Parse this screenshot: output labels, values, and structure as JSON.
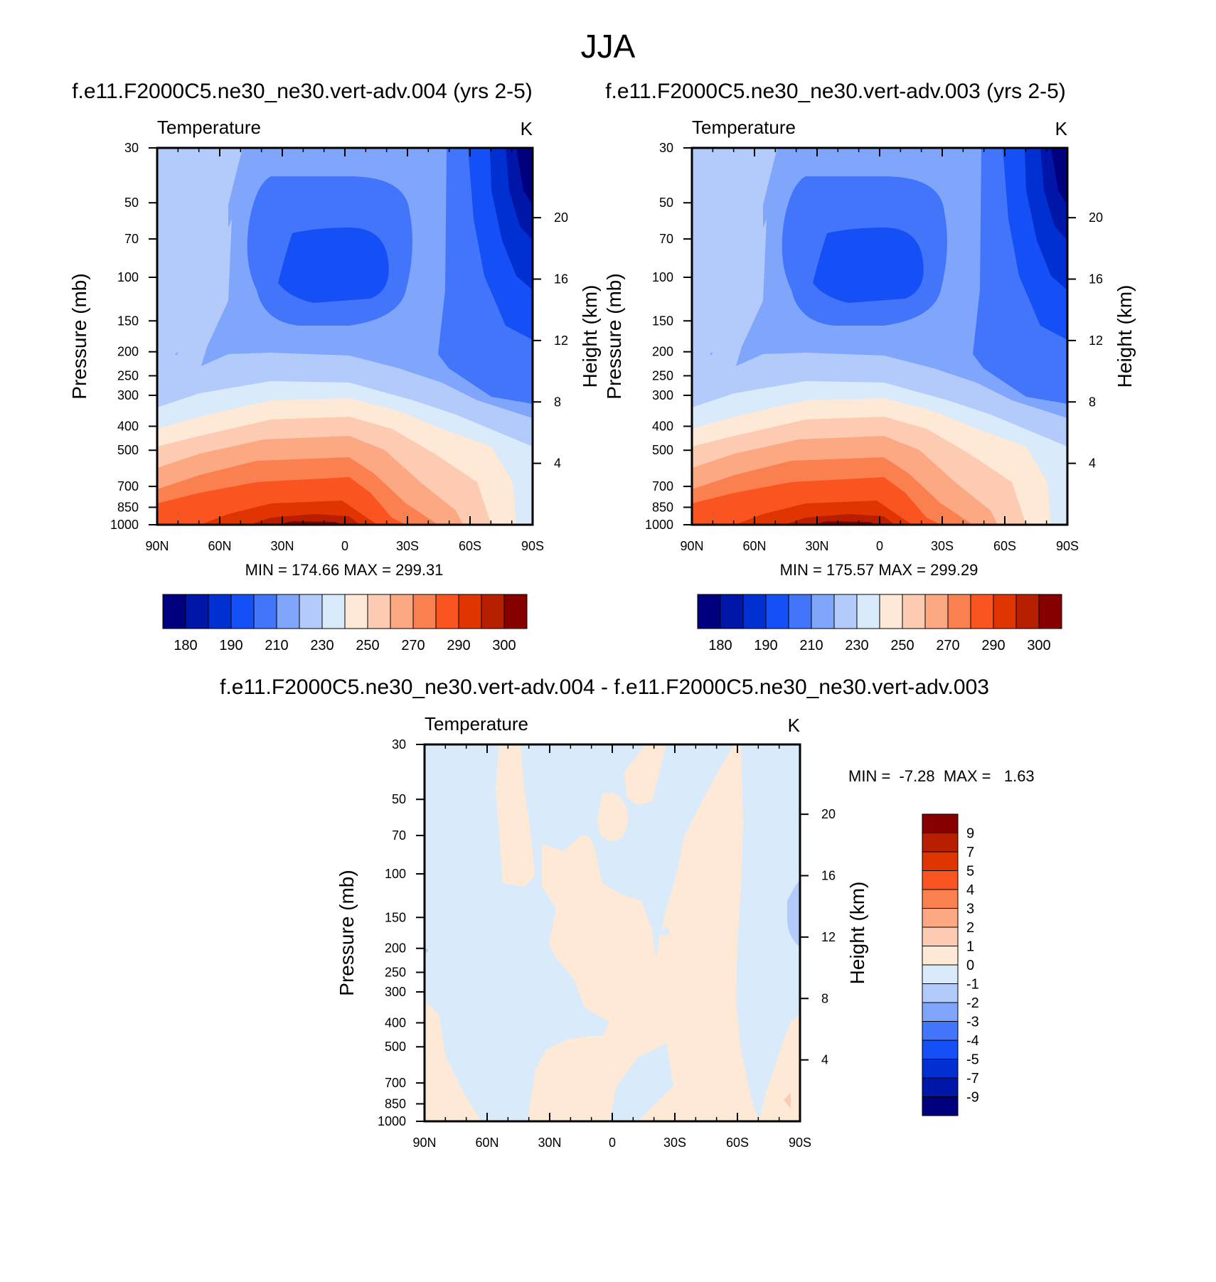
{
  "figure": {
    "title": "JJA"
  },
  "chart_data": [
    {
      "type": "heatmap",
      "title": "f.e11.F2000C5.ne30_ne30.vert-adv.004 (yrs 2-5)",
      "variable": "Temperature",
      "units": "K",
      "ylabel": "Pressure (mb)",
      "y2label": "Height (km)",
      "x_ticks": [
        "90N",
        "60N",
        "30N",
        "0",
        "30S",
        "60S",
        "90S"
      ],
      "x_values": [
        90,
        60,
        30,
        0,
        -30,
        -60,
        -90
      ],
      "y_ticks": [
        30,
        50,
        70,
        100,
        150,
        200,
        250,
        300,
        400,
        500,
        700,
        850,
        1000
      ],
      "y2_ticks": [
        20,
        16,
        12,
        8,
        4
      ],
      "y_scale": "log",
      "min_max_text": "MIN = 174.66  MAX = 299.31",
      "min": 174.66,
      "max": 299.31,
      "colorbar": {
        "orientation": "horizontal",
        "colors": [
          "#00007f",
          "#0016a8",
          "#0030d1",
          "#1450f5",
          "#4375fa",
          "#80a6fb",
          "#b3cbfb",
          "#d9eafb",
          "#fde9d6",
          "#fdcab2",
          "#fca882",
          "#fa8050",
          "#fa5520",
          "#e03500",
          "#b81f00",
          "#870000"
        ],
        "labels": [
          "180",
          "190",
          "210",
          "230",
          "250",
          "270",
          "290",
          "300"
        ]
      },
      "field_description": "Zonal-mean temperature: cold minimum (~175 K) near 100 mb at equator and in upper SH polar region; warm maximum (~299 K) near surface at 20N-10S."
    },
    {
      "type": "heatmap",
      "title": "f.e11.F2000C5.ne30_ne30.vert-adv.003 (yrs 2-5)",
      "variable": "Temperature",
      "units": "K",
      "ylabel": "Pressure (mb)",
      "y2label": "Height (km)",
      "x_ticks": [
        "90N",
        "60N",
        "30N",
        "0",
        "30S",
        "60S",
        "90S"
      ],
      "x_values": [
        90,
        60,
        30,
        0,
        -30,
        -60,
        -90
      ],
      "y_ticks": [
        30,
        50,
        70,
        100,
        150,
        200,
        250,
        300,
        400,
        500,
        700,
        850,
        1000
      ],
      "y2_ticks": [
        20,
        16,
        12,
        8,
        4
      ],
      "y_scale": "log",
      "min_max_text": "MIN = 175.57  MAX = 299.29",
      "min": 175.57,
      "max": 299.29,
      "colorbar": {
        "orientation": "horizontal",
        "colors": [
          "#00007f",
          "#0016a8",
          "#0030d1",
          "#1450f5",
          "#4375fa",
          "#80a6fb",
          "#b3cbfb",
          "#d9eafb",
          "#fde9d6",
          "#fdcab2",
          "#fca882",
          "#fa8050",
          "#fa5520",
          "#e03500",
          "#b81f00",
          "#870000"
        ],
        "labels": [
          "180",
          "190",
          "210",
          "230",
          "250",
          "270",
          "290",
          "300"
        ]
      }
    },
    {
      "type": "heatmap",
      "title": "f.e11.F2000C5.ne30_ne30.vert-adv.004 - f.e11.F2000C5.ne30_ne30.vert-adv.003",
      "variable": "Temperature",
      "units": "K",
      "ylabel": "Pressure (mb)",
      "y2label": "Height (km)",
      "x_ticks": [
        "90N",
        "60N",
        "30N",
        "0",
        "30S",
        "60S",
        "90S"
      ],
      "x_values": [
        90,
        60,
        30,
        0,
        -30,
        -60,
        -90
      ],
      "y_ticks": [
        30,
        50,
        70,
        100,
        150,
        200,
        250,
        300,
        400,
        500,
        700,
        850,
        1000
      ],
      "y2_ticks": [
        20,
        16,
        12,
        8,
        4
      ],
      "y_scale": "log",
      "min_max_text": "MIN =  -7.28  MAX =   1.63",
      "min": -7.28,
      "max": 1.63,
      "colorbar": {
        "orientation": "vertical",
        "colors": [
          "#870000",
          "#b81f00",
          "#e03500",
          "#fa5520",
          "#fa8050",
          "#fca882",
          "#fdcab2",
          "#fde9d6",
          "#d9eafb",
          "#b3cbfb",
          "#80a6fb",
          "#4375fa",
          "#1450f5",
          "#0030d1",
          "#0016a8",
          "#00007f"
        ],
        "labels": [
          "9",
          "7",
          "5",
          "4",
          "3",
          "2",
          "1",
          "0",
          "-1",
          "-2",
          "-3",
          "-4",
          "-5",
          "-7",
          "-9"
        ]
      },
      "field_description": "Difference is small almost everywhere: bands of 0 to +1 K (light orange) and 0 to -1 K (light blue)."
    }
  ]
}
